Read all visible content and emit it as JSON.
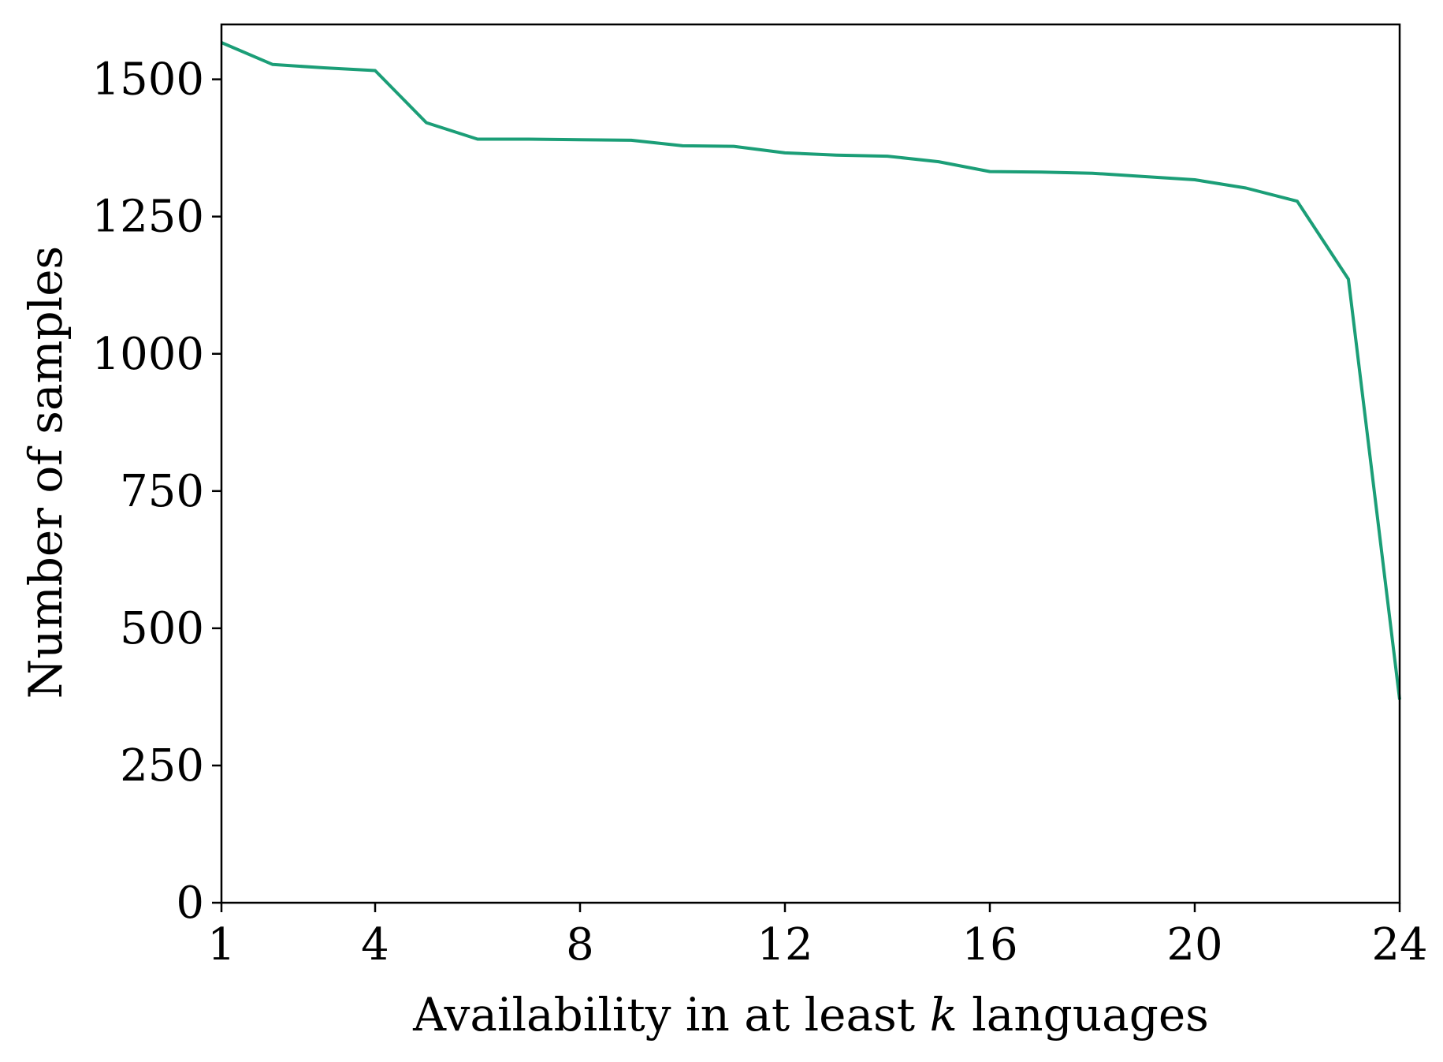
{
  "chart_data": {
    "type": "line",
    "title": "",
    "xlabel": {
      "before": "Availability in at least ",
      "variable": "k",
      "after": " languages"
    },
    "ylabel": "Number of samples",
    "xlim": [
      1,
      24
    ],
    "ylim": [
      0,
      1600
    ],
    "xticks": [
      1,
      4,
      8,
      12,
      16,
      20,
      24
    ],
    "yticks": [
      0,
      250,
      500,
      750,
      1000,
      1250,
      1500
    ],
    "grid": false,
    "legend": "none",
    "series": [
      {
        "color": "#1b9e77",
        "x": [
          1,
          2,
          3,
          4,
          5,
          6,
          7,
          8,
          9,
          10,
          11,
          12,
          13,
          14,
          15,
          16,
          17,
          18,
          19,
          20,
          21,
          22,
          23,
          24
        ],
        "y": [
          1567,
          1527,
          1521,
          1516,
          1421,
          1391,
          1391,
          1390,
          1389,
          1379,
          1378,
          1366,
          1362,
          1360,
          1350,
          1332,
          1331,
          1329,
          1323,
          1317,
          1302,
          1278,
          1136,
          370
        ]
      }
    ]
  }
}
